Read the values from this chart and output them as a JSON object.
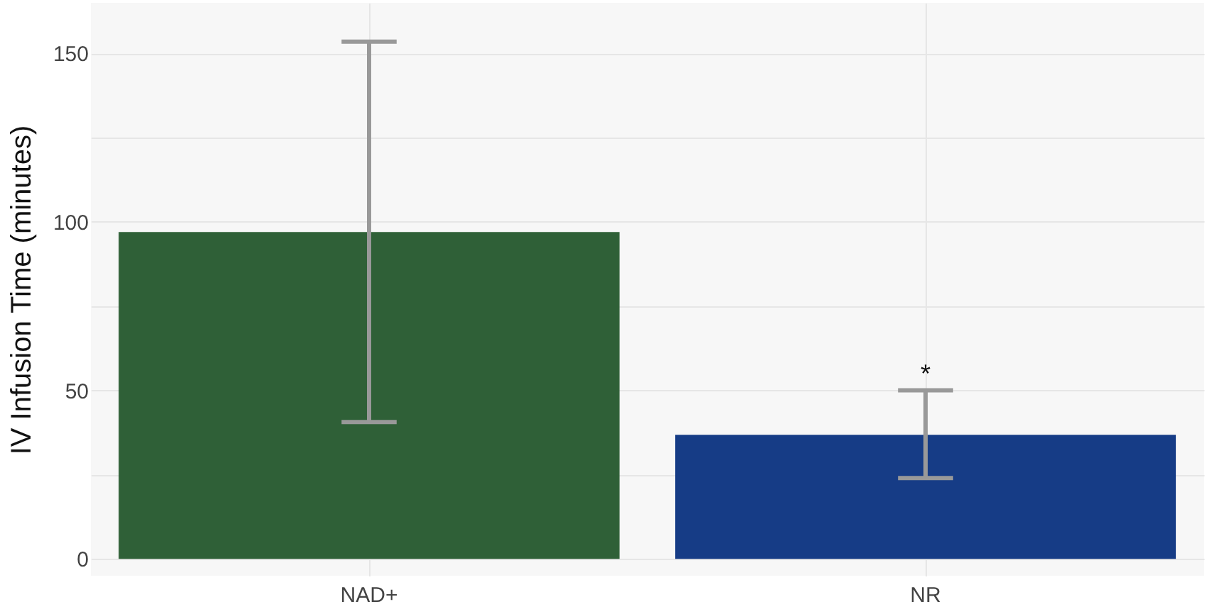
{
  "chart_data": {
    "type": "bar",
    "ylabel": "IV Infusion Time (minutes)",
    "categories": [
      "NAD+",
      "NR"
    ],
    "values": [
      97,
      36.8
    ],
    "colors": [
      "#2f6037",
      "#163c86"
    ],
    "errors": [
      [
        40.6,
        153.5
      ],
      [
        24,
        50
      ]
    ],
    "ylim": [
      -5,
      165
    ],
    "yticks": [
      0,
      {
        "value": 25,
        "label": null
      },
      50,
      {
        "value": 75,
        "label": null
      },
      100,
      {
        "value": 125,
        "label": null
      },
      150
    ],
    "grid": true,
    "annotations": [
      "*"
    ]
  }
}
